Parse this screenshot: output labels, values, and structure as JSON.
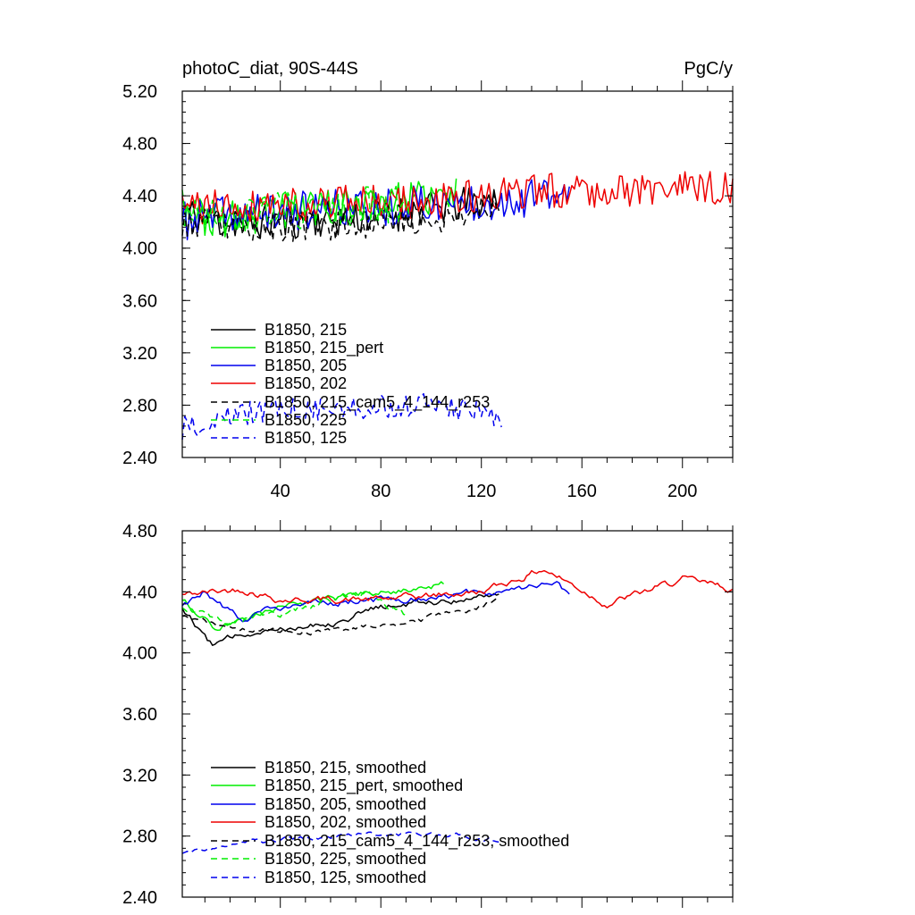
{
  "chart_data": [
    {
      "type": "line",
      "title": "photoC_diat, 90S-44S",
      "units": "PgC/y",
      "xlim": [
        1,
        220
      ],
      "ylim": [
        2.4,
        5.2
      ],
      "xticks": [
        40,
        80,
        120,
        160,
        200
      ],
      "xticks_labeled": true,
      "yticks": [
        2.4,
        2.8,
        3.2,
        3.6,
        4.0,
        4.4,
        4.8,
        5.2
      ],
      "ytick_labels": [
        "2.40",
        "2.80",
        "3.20",
        "3.60",
        "4.00",
        "4.40",
        "4.80",
        "5.20"
      ],
      "grid": false,
      "legend_position": "bottom-left",
      "series": [
        {
          "name": "B1850, 215",
          "color": "#000000",
          "dash": "solid",
          "noise": 0.14,
          "seed": 11,
          "anchors": [
            [
              1,
              4.3
            ],
            [
              10,
              4.2
            ],
            [
              40,
              4.2
            ],
            [
              80,
              4.25
            ],
            [
              120,
              4.35
            ],
            [
              127,
              4.4
            ]
          ]
        },
        {
          "name": "B1850, 215_pert",
          "color": "#00ee00",
          "dash": "solid",
          "noise": 0.14,
          "seed": 23,
          "anchors": [
            [
              1,
              4.3
            ],
            [
              15,
              4.2
            ],
            [
              40,
              4.3
            ],
            [
              80,
              4.35
            ],
            [
              110,
              4.4
            ]
          ]
        },
        {
          "name": "B1850, 205",
          "color": "#0000ee",
          "dash": "solid",
          "noise": 0.15,
          "seed": 37,
          "anchors": [
            [
              1,
              4.2
            ],
            [
              15,
              4.25
            ],
            [
              60,
              4.3
            ],
            [
              110,
              4.35
            ],
            [
              155,
              4.4
            ]
          ]
        },
        {
          "name": "B1850, 202",
          "color": "#ee0000",
          "dash": "solid",
          "noise": 0.14,
          "seed": 41,
          "anchors": [
            [
              1,
              4.3
            ],
            [
              40,
              4.35
            ],
            [
              100,
              4.35
            ],
            [
              150,
              4.45
            ],
            [
              220,
              4.45
            ]
          ]
        },
        {
          "name": "B1850, 215_cam5_4_144_r253",
          "color": "#000000",
          "dash": "7,5",
          "noise": 0.12,
          "seed": 53,
          "anchors": [
            [
              1,
              4.2
            ],
            [
              40,
              4.15
            ],
            [
              80,
              4.2
            ],
            [
              110,
              4.25
            ],
            [
              127,
              4.35
            ]
          ]
        },
        {
          "name": "B1850, 225",
          "color": "#00ee00",
          "dash": "7,5",
          "noise": 0.15,
          "seed": 67,
          "anchors": [
            [
              1,
              4.3
            ],
            [
              20,
              4.25
            ],
            [
              60,
              4.3
            ],
            [
              90,
              4.35
            ]
          ]
        },
        {
          "name": "B1850, 125",
          "color": "#0000ee",
          "dash": "7,5",
          "noise": 0.09,
          "seed": 79,
          "anchors": [
            [
              1,
              2.62
            ],
            [
              30,
              2.75
            ],
            [
              60,
              2.78
            ],
            [
              100,
              2.8
            ],
            [
              128,
              2.72
            ]
          ]
        }
      ]
    },
    {
      "type": "line",
      "title": "",
      "units": "",
      "xlim": [
        1,
        220
      ],
      "ylim": [
        2.4,
        4.8
      ],
      "xticks": [
        40,
        80,
        120,
        160,
        200
      ],
      "xticks_labeled": false,
      "yticks": [
        2.4,
        2.8,
        3.2,
        3.6,
        4.0,
        4.4,
        4.8
      ],
      "ytick_labels": [
        "2.40",
        "2.80",
        "3.20",
        "3.60",
        "4.00",
        "4.40",
        "4.80"
      ],
      "grid": false,
      "legend_position": "bottom-left",
      "series": [
        {
          "name": "B1850, 215, smoothed",
          "color": "#000000",
          "dash": "solid",
          "noise": 0.03,
          "seed": 12,
          "anchors": [
            [
              1,
              4.3
            ],
            [
              13,
              4.05
            ],
            [
              30,
              4.15
            ],
            [
              60,
              4.2
            ],
            [
              80,
              4.3
            ],
            [
              110,
              4.35
            ],
            [
              127,
              4.4
            ]
          ]
        },
        {
          "name": "B1850, 215_pert, smoothed",
          "color": "#00ee00",
          "dash": "solid",
          "noise": 0.03,
          "seed": 24,
          "anchors": [
            [
              1,
              4.35
            ],
            [
              15,
              4.15
            ],
            [
              40,
              4.3
            ],
            [
              80,
              4.4
            ],
            [
              105,
              4.45
            ]
          ]
        },
        {
          "name": "B1850, 205, smoothed",
          "color": "#0000ee",
          "dash": "solid",
          "noise": 0.03,
          "seed": 38,
          "anchors": [
            [
              1,
              4.3
            ],
            [
              10,
              4.4
            ],
            [
              25,
              4.2
            ],
            [
              40,
              4.3
            ],
            [
              80,
              4.35
            ],
            [
              130,
              4.4
            ],
            [
              150,
              4.45
            ],
            [
              155,
              4.38
            ]
          ]
        },
        {
          "name": "B1850, 202, smoothed",
          "color": "#ee0000",
          "dash": "solid",
          "noise": 0.03,
          "seed": 42,
          "anchors": [
            [
              1,
              4.38
            ],
            [
              25,
              4.42
            ],
            [
              40,
              4.35
            ],
            [
              80,
              4.35
            ],
            [
              120,
              4.4
            ],
            [
              145,
              4.55
            ],
            [
              170,
              4.32
            ],
            [
              200,
              4.48
            ],
            [
              220,
              4.42
            ]
          ]
        },
        {
          "name": "B1850, 215_cam5_4_144_r253, smoothed",
          "color": "#000000",
          "dash": "7,5",
          "noise": 0.025,
          "seed": 54,
          "anchors": [
            [
              1,
              4.25
            ],
            [
              20,
              4.15
            ],
            [
              60,
              4.15
            ],
            [
              90,
              4.2
            ],
            [
              110,
              4.25
            ],
            [
              127,
              4.35
            ]
          ]
        },
        {
          "name": "B1850, 225, smoothed",
          "color": "#00ee00",
          "dash": "7,5",
          "noise": 0.03,
          "seed": 68,
          "anchors": [
            [
              1,
              4.3
            ],
            [
              20,
              4.2
            ],
            [
              50,
              4.3
            ],
            [
              75,
              4.4
            ],
            [
              90,
              4.25
            ]
          ]
        },
        {
          "name": "B1850, 125, smoothed",
          "color": "#0000ee",
          "dash": "7,5",
          "noise": 0.02,
          "seed": 80,
          "anchors": [
            [
              1,
              2.68
            ],
            [
              20,
              2.75
            ],
            [
              60,
              2.8
            ],
            [
              100,
              2.82
            ],
            [
              128,
              2.77
            ]
          ]
        }
      ]
    }
  ]
}
